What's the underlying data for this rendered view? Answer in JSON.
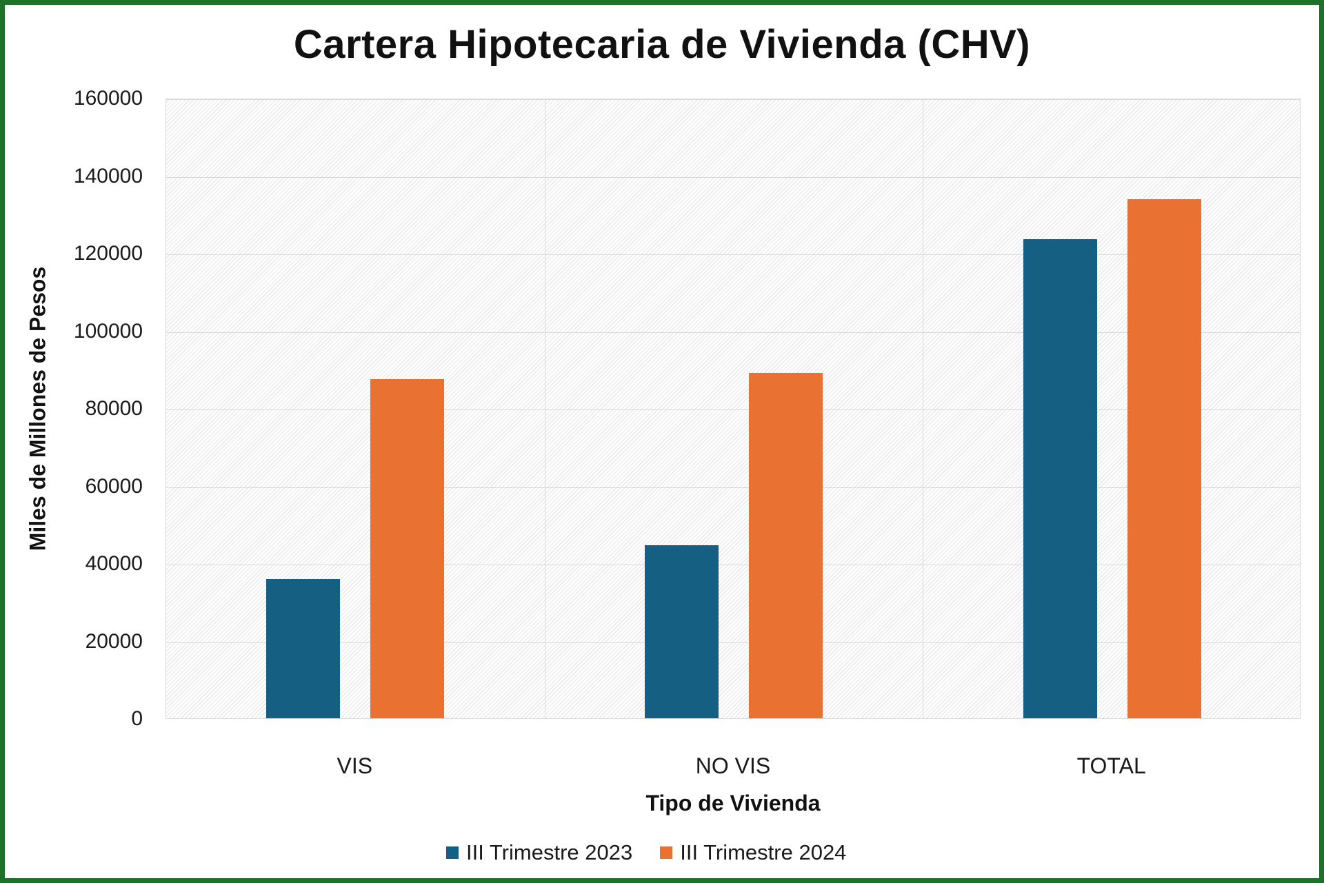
{
  "frame": {
    "border_color": "#1E7128",
    "background": "#FFFFFF"
  },
  "chart_data": {
    "type": "bar",
    "title": "Cartera Hipotecaria de Vivienda (CHV)",
    "xlabel": "Tipo de Vivienda",
    "ylabel": "Miles de Millones de Pesos",
    "categories": [
      "VIS",
      "NO VIS",
      "TOTAL"
    ],
    "series": [
      {
        "name": "III Trimestre 2023",
        "color": "#156082",
        "values": [
          36000,
          44600,
          123500
        ]
      },
      {
        "name": "III Trimestre 2024",
        "color": "#E97132",
        "values": [
          87500,
          89000,
          133900
        ]
      }
    ],
    "ylim": [
      0,
      160000
    ],
    "ytick_step": 20000,
    "ytick_labels": [
      "0",
      "20000",
      "40000",
      "60000",
      "80000",
      "100000",
      "120000",
      "140000",
      "160000"
    ],
    "grid": {
      "horizontal": true,
      "vertical_category_separators": true,
      "color": "#D9D9D9"
    },
    "plot_background": {
      "pattern": "diagonal-hatch",
      "hatch_color": "#E7E7E7"
    },
    "legend_position": "bottom"
  }
}
